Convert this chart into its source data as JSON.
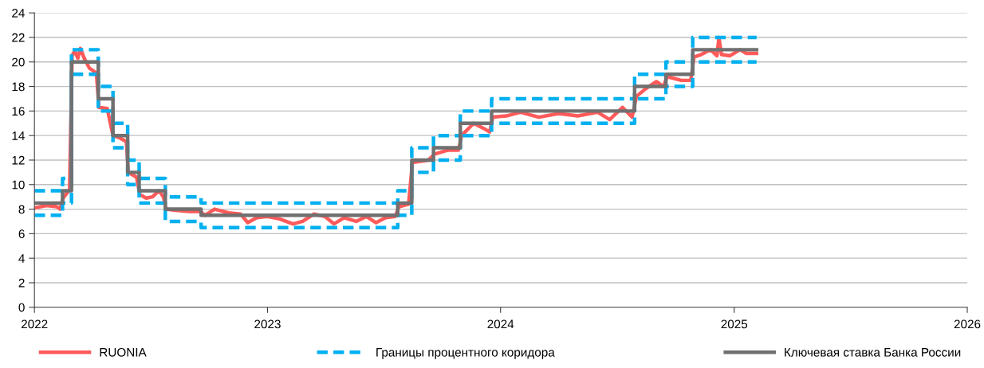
{
  "chart_data": {
    "type": "line",
    "xlim": [
      "2022-01-01",
      "2026-01-01"
    ],
    "xticks": [
      {
        "value": "2022-01-01",
        "label": "2022"
      },
      {
        "value": "2023-01-01",
        "label": "2023"
      },
      {
        "value": "2024-01-01",
        "label": "2024"
      },
      {
        "value": "2025-01-01",
        "label": "2025"
      },
      {
        "value": "2026-01-01",
        "label": "2026"
      }
    ],
    "ylim": [
      0,
      24
    ],
    "yticks": [
      0,
      2,
      4,
      6,
      8,
      10,
      12,
      14,
      16,
      18,
      20,
      22,
      24
    ],
    "grid": "y",
    "legend": "bottom",
    "marker": "none",
    "series": [
      {
        "name": "RUONIA",
        "color": "#ff5a5a",
        "line_style": "solid",
        "x": [
          "2022-01-01",
          "2022-01-20",
          "2022-02-05",
          "2022-02-10",
          "2022-02-15",
          "2022-02-25",
          "2022-03-01",
          "2022-03-05",
          "2022-03-10",
          "2022-03-14",
          "2022-03-20",
          "2022-03-28",
          "2022-04-08",
          "2022-04-12",
          "2022-04-25",
          "2022-05-04",
          "2022-05-15",
          "2022-05-25",
          "2022-05-28",
          "2022-06-10",
          "2022-06-15",
          "2022-06-25",
          "2022-07-05",
          "2022-07-15",
          "2022-07-22",
          "2022-07-26",
          "2022-08-10",
          "2022-09-01",
          "2022-09-18",
          "2022-09-25",
          "2022-10-10",
          "2022-11-01",
          "2022-11-20",
          "2022-12-01",
          "2022-12-15",
          "2023-01-01",
          "2023-01-20",
          "2023-02-10",
          "2023-02-25",
          "2023-03-15",
          "2023-04-01",
          "2023-04-15",
          "2023-05-01",
          "2023-05-20",
          "2023-06-05",
          "2023-06-20",
          "2023-07-05",
          "2023-07-20",
          "2023-07-26",
          "2023-08-10",
          "2023-08-16",
          "2023-09-10",
          "2023-09-20",
          "2023-10-10",
          "2023-10-27",
          "2023-11-01",
          "2023-11-20",
          "2023-12-05",
          "2023-12-15",
          "2023-12-20",
          "2024-01-10",
          "2024-02-01",
          "2024-03-01",
          "2024-04-01",
          "2024-05-01",
          "2024-06-01",
          "2024-06-20",
          "2024-07-10",
          "2024-07-25",
          "2024-08-01",
          "2024-08-15",
          "2024-09-01",
          "2024-09-12",
          "2024-09-18",
          "2024-10-10",
          "2024-10-25",
          "2024-10-30",
          "2024-11-10",
          "2024-11-25",
          "2024-12-05",
          "2024-12-08",
          "2024-12-12",
          "2024-12-25",
          "2025-01-10",
          "2025-01-20",
          "2025-02-05"
        ],
        "values": [
          8.1,
          8.3,
          8.2,
          8.0,
          8.9,
          9.6,
          20.5,
          20.9,
          20.3,
          21.1,
          20.3,
          19.5,
          19.1,
          16.3,
          16.2,
          14.0,
          13.8,
          13.5,
          11.0,
          10.6,
          9.2,
          8.9,
          9.0,
          9.5,
          9.0,
          8.0,
          7.9,
          7.8,
          7.8,
          7.5,
          8.0,
          7.7,
          7.6,
          6.9,
          7.3,
          7.4,
          7.2,
          6.8,
          7.0,
          7.6,
          7.4,
          6.8,
          7.3,
          7.0,
          7.4,
          6.9,
          7.3,
          7.4,
          8.2,
          8.4,
          11.8,
          12.0,
          12.5,
          12.8,
          12.8,
          14.0,
          15.0,
          14.6,
          14.3,
          15.5,
          15.6,
          15.9,
          15.5,
          15.8,
          15.6,
          15.9,
          15.3,
          16.3,
          15.5,
          17.2,
          17.8,
          18.4,
          18.0,
          18.8,
          18.5,
          18.5,
          20.4,
          20.6,
          21.0,
          20.5,
          22.0,
          20.6,
          20.5,
          21.0,
          20.7,
          20.7
        ]
      },
      {
        "name": "Границы процентного коридора",
        "color": "#00b0f0",
        "type": "step",
        "line_style": "dashed",
        "x": [
          "2022-01-01",
          "2022-02-14",
          "2022-02-28",
          "2022-04-11",
          "2022-05-04",
          "2022-05-27",
          "2022-06-14",
          "2022-07-25",
          "2022-09-19",
          "2023-07-24",
          "2023-08-15",
          "2023-09-18",
          "2023-10-30",
          "2023-12-18",
          "2024-07-29",
          "2024-09-16",
          "2024-10-28",
          "2025-02-05"
        ],
        "values": [
          9.5,
          10.5,
          21,
          18,
          15,
          12,
          10.5,
          9,
          8.5,
          9.5,
          13,
          14,
          16,
          17,
          19,
          20,
          22,
          22
        ]
      },
      {
        "color": "#00b0f0",
        "type": "step",
        "line_style": "dashed",
        "x": [
          "2022-01-01",
          "2022-02-14",
          "2022-02-28",
          "2022-04-11",
          "2022-05-04",
          "2022-05-27",
          "2022-06-14",
          "2022-07-25",
          "2022-09-19",
          "2023-07-24",
          "2023-08-15",
          "2023-09-18",
          "2023-10-30",
          "2023-12-18",
          "2024-07-29",
          "2024-09-16",
          "2024-10-28",
          "2025-02-05"
        ],
        "values": [
          7.5,
          8.5,
          19,
          16,
          13,
          10,
          8.5,
          7,
          6.5,
          7.5,
          11,
          12,
          14,
          15,
          17,
          18,
          20,
          20
        ]
      },
      {
        "name": "Ключевая ставка Банка России",
        "color": "#707070",
        "type": "step",
        "line_style": "solid",
        "x": [
          "2022-01-01",
          "2022-02-14",
          "2022-02-28",
          "2022-04-11",
          "2022-05-04",
          "2022-05-27",
          "2022-06-14",
          "2022-07-25",
          "2022-09-19",
          "2023-07-24",
          "2023-08-15",
          "2023-09-18",
          "2023-10-30",
          "2023-12-18",
          "2024-07-29",
          "2024-09-16",
          "2024-10-28",
          "2025-02-05"
        ],
        "values": [
          8.5,
          9.5,
          20,
          17,
          14,
          11,
          9.5,
          8,
          7.5,
          8.5,
          12,
          13,
          15,
          16,
          18,
          19,
          21,
          21
        ]
      }
    ]
  }
}
